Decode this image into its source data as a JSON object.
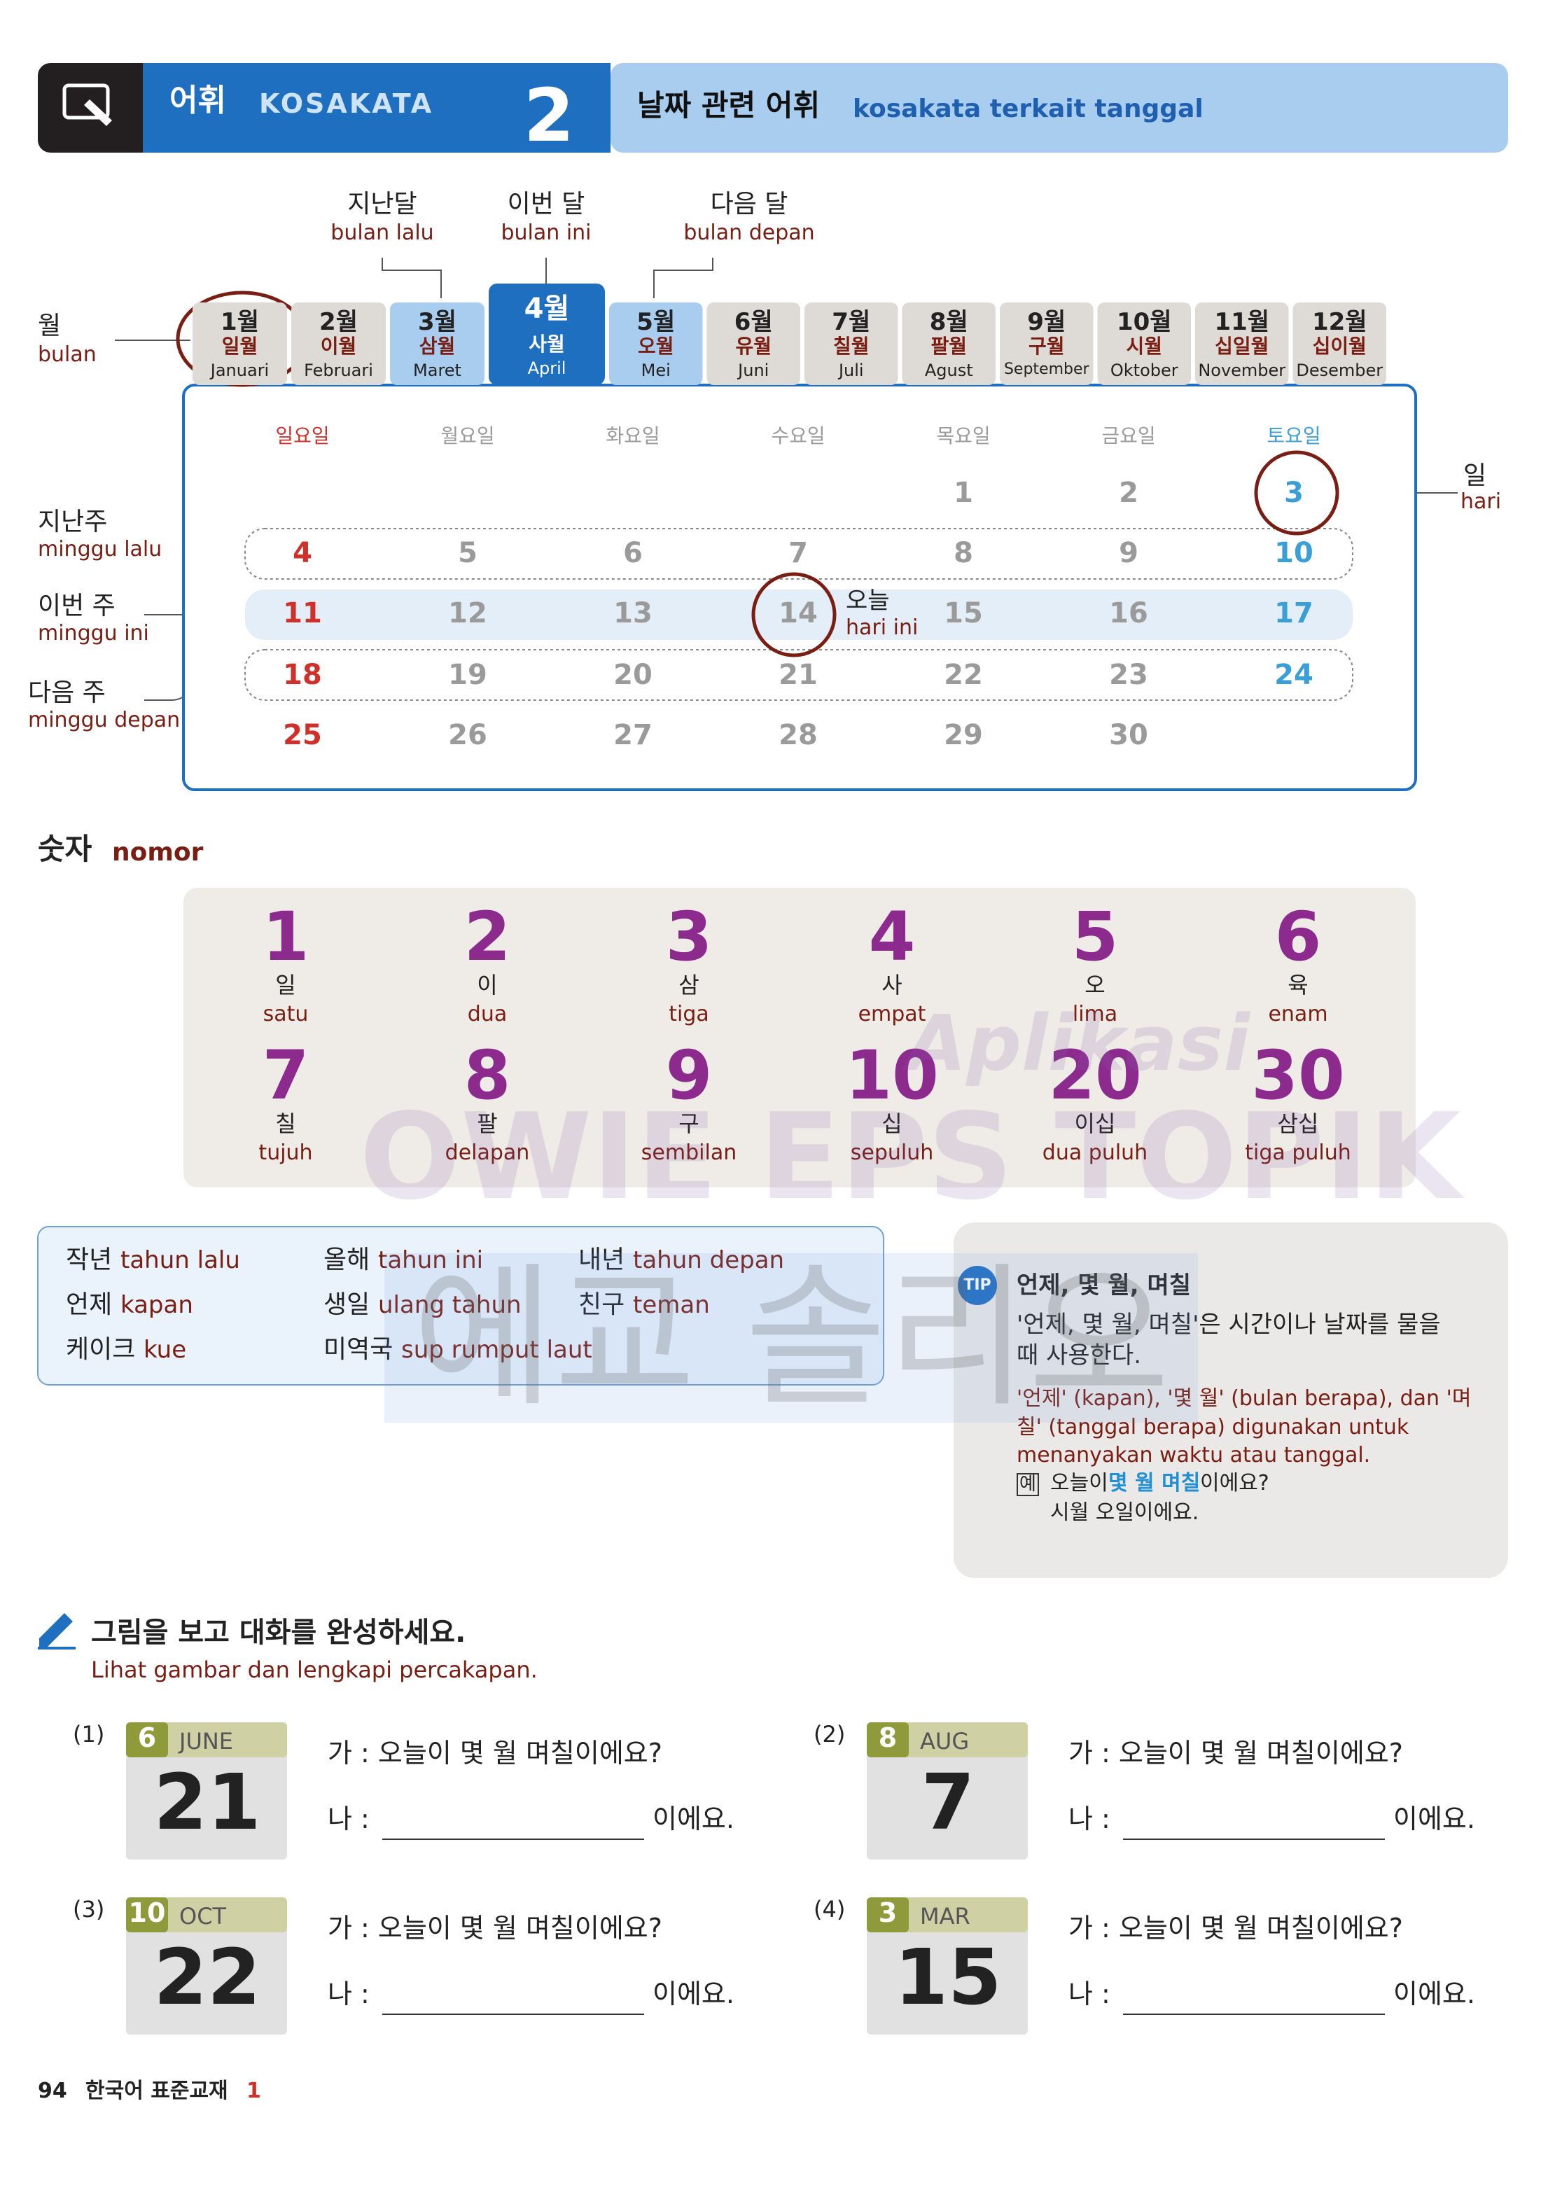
{
  "header": {
    "section_ko": "어휘",
    "section_id": "KOSAKATA",
    "number": "2",
    "title_ko": "날짜 관련 어휘",
    "title_id": "kosakata terkait tanggal"
  },
  "month_labels": [
    {
      "ko": "지난달",
      "id": "bulan lalu"
    },
    {
      "ko": "이번 달",
      "id": "bulan ini"
    },
    {
      "ko": "다음 달",
      "id": "bulan depan"
    }
  ],
  "month_side": {
    "ko": "월",
    "id": "bulan"
  },
  "months": [
    {
      "num": "1월",
      "ko": "일월",
      "id": "Januari"
    },
    {
      "num": "2월",
      "ko": "이월",
      "id": "Februari"
    },
    {
      "num": "3월",
      "ko": "삼월",
      "id": "Maret"
    },
    {
      "num": "4월",
      "ko": "사월",
      "id": "April"
    },
    {
      "num": "5월",
      "ko": "오월",
      "id": "Mei"
    },
    {
      "num": "6월",
      "ko": "유월",
      "id": "Juni"
    },
    {
      "num": "7월",
      "ko": "칠월",
      "id": "Juli"
    },
    {
      "num": "8월",
      "ko": "팔월",
      "id": "Agust"
    },
    {
      "num": "9월",
      "ko": "구월",
      "id": "September"
    },
    {
      "num": "10월",
      "ko": "시월",
      "id": "Oktober"
    },
    {
      "num": "11월",
      "ko": "십일월",
      "id": "November"
    },
    {
      "num": "12월",
      "ko": "십이월",
      "id": "Desember"
    }
  ],
  "weekdays": [
    "일요일",
    "월요일",
    "화요일",
    "수요일",
    "목요일",
    "금요일",
    "토요일"
  ],
  "weeks": [
    [
      1,
      2,
      3
    ],
    [
      4,
      5,
      6,
      7,
      8,
      9,
      10
    ],
    [
      11,
      12,
      13,
      14,
      15,
      16,
      17
    ],
    [
      18,
      19,
      20,
      21,
      22,
      23,
      24
    ],
    [
      25,
      26,
      27,
      28,
      29,
      30
    ]
  ],
  "week_labels": [
    {
      "ko": "지난주",
      "id": "minggu lalu"
    },
    {
      "ko": "이번 주",
      "id": "minggu ini"
    },
    {
      "ko": "다음 주",
      "id": "minggu depan"
    }
  ],
  "day_label": {
    "ko": "일",
    "id": "hari"
  },
  "today_label": {
    "ko": "오늘",
    "id": "hari ini"
  },
  "numbers": {
    "title_ko": "숫자",
    "title_id": "nomor",
    "items": [
      {
        "num": "1",
        "ko": "일",
        "id": "satu"
      },
      {
        "num": "2",
        "ko": "이",
        "id": "dua"
      },
      {
        "num": "3",
        "ko": "삼",
        "id": "tiga"
      },
      {
        "num": "4",
        "ko": "사",
        "id": "empat"
      },
      {
        "num": "5",
        "ko": "오",
        "id": "lima"
      },
      {
        "num": "6",
        "ko": "육",
        "id": "enam"
      },
      {
        "num": "7",
        "ko": "칠",
        "id": "tujuh"
      },
      {
        "num": "8",
        "ko": "팔",
        "id": "delapan"
      },
      {
        "num": "9",
        "ko": "구",
        "id": "sembilan"
      },
      {
        "num": "10",
        "ko": "십",
        "id": "sepuluh"
      },
      {
        "num": "20",
        "ko": "이십",
        "id": "dua puluh"
      },
      {
        "num": "30",
        "ko": "삼십",
        "id": "tiga puluh"
      }
    ]
  },
  "vocab": [
    [
      {
        "ko": "작년",
        "id": "tahun lalu"
      },
      {
        "ko": "올해",
        "id": "tahun ini"
      },
      {
        "ko": "내년",
        "id": "tahun depan"
      }
    ],
    [
      {
        "ko": "언제",
        "id": "kapan"
      },
      {
        "ko": "생일",
        "id": "ulang tahun"
      },
      {
        "ko": "친구",
        "id": "teman"
      }
    ],
    [
      {
        "ko": "케이크",
        "id": "kue"
      },
      {
        "ko": "미역국",
        "id": "sup rumput laut"
      }
    ]
  ],
  "tip": {
    "icon": "TIP",
    "title": "언제, 몇 월, 며칠",
    "text_ko": "'언제, 몇 월, 며칠'은 시간이나 날짜를 물을 때 사용한다.",
    "text_id": "'언제' (kapan), '몇 월' (bulan berapa), dan '며칠' (tanggal berapa) digunakan untuk menanyakan waktu atau tanggal.",
    "example_marker": "예",
    "example_q": [
      "오늘이 ",
      "몇 월 며칠",
      "이에요?"
    ],
    "example_a": "시월 오일이에요."
  },
  "exercise": {
    "title_ko": "그림을 보고 대화를 완성하세요.",
    "title_id": "Lihat gambar dan lengkapi percakapan.",
    "items": [
      {
        "label": "(1)",
        "month": "6",
        "month_name": "JUNE",
        "day": "21",
        "question": "가 : 오늘이 몇 월 며칠이에요?",
        "answer_prefix": "나 :",
        "answer_suffix": "이에요."
      },
      {
        "label": "(2)",
        "month": "8",
        "month_name": "AUG",
        "day": "7",
        "question": "가 : 오늘이 몇 월 며칠이에요?",
        "answer_prefix": "나 :",
        "answer_suffix": "이에요."
      },
      {
        "label": "(3)",
        "month": "10",
        "month_name": "OCT",
        "day": "22",
        "question": "가 : 오늘이 몇 월 며칠이에요?",
        "answer_prefix": "나 :",
        "answer_suffix": "이에요."
      },
      {
        "label": "(4)",
        "month": "3",
        "month_name": "MAR",
        "day": "15",
        "question": "가 : 오늘이 몇 월 며칠이에요?",
        "answer_prefix": "나 :",
        "answer_suffix": "이에요."
      }
    ]
  },
  "watermark": [
    "Aplikasi",
    "OWIE EPS TOPIK",
    "에교 솔리오"
  ],
  "footer": {
    "page": "94",
    "book": "한국어 표준교재",
    "volume": "1"
  }
}
